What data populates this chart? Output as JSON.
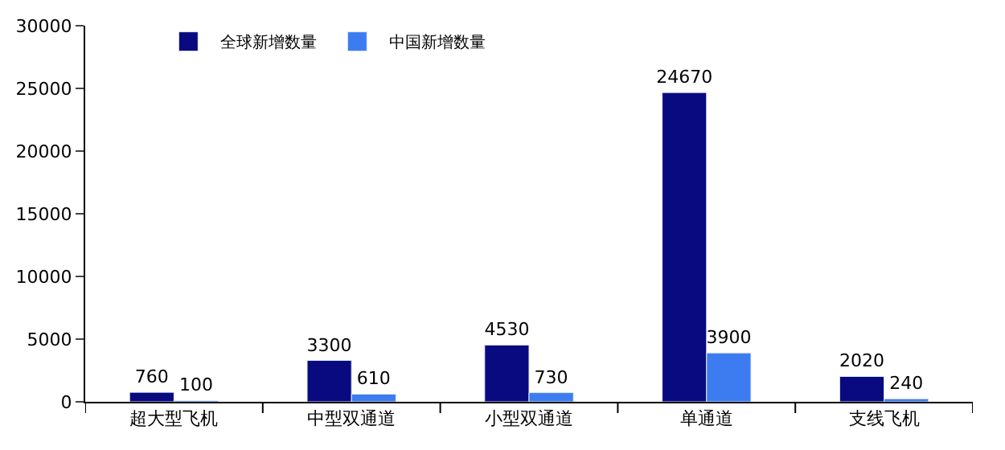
{
  "chart_data": {
    "type": "bar",
    "categories": [
      "超大型飞机",
      "中型双通道",
      "小型双通道",
      "单通道",
      "支线飞机"
    ],
    "series": [
      {
        "name": "全球新增数量",
        "color": "#0a0a80",
        "values": [
          760,
          3300,
          4530,
          24670,
          2020
        ]
      },
      {
        "name": "中国新增数量",
        "color": "#3c7cf0",
        "values": [
          100,
          610,
          730,
          3900,
          240
        ]
      }
    ],
    "ylim": [
      0,
      30000
    ],
    "yticks": [
      0,
      5000,
      10000,
      15000,
      20000,
      25000,
      30000
    ],
    "data_labels": true,
    "legend": "top"
  }
}
